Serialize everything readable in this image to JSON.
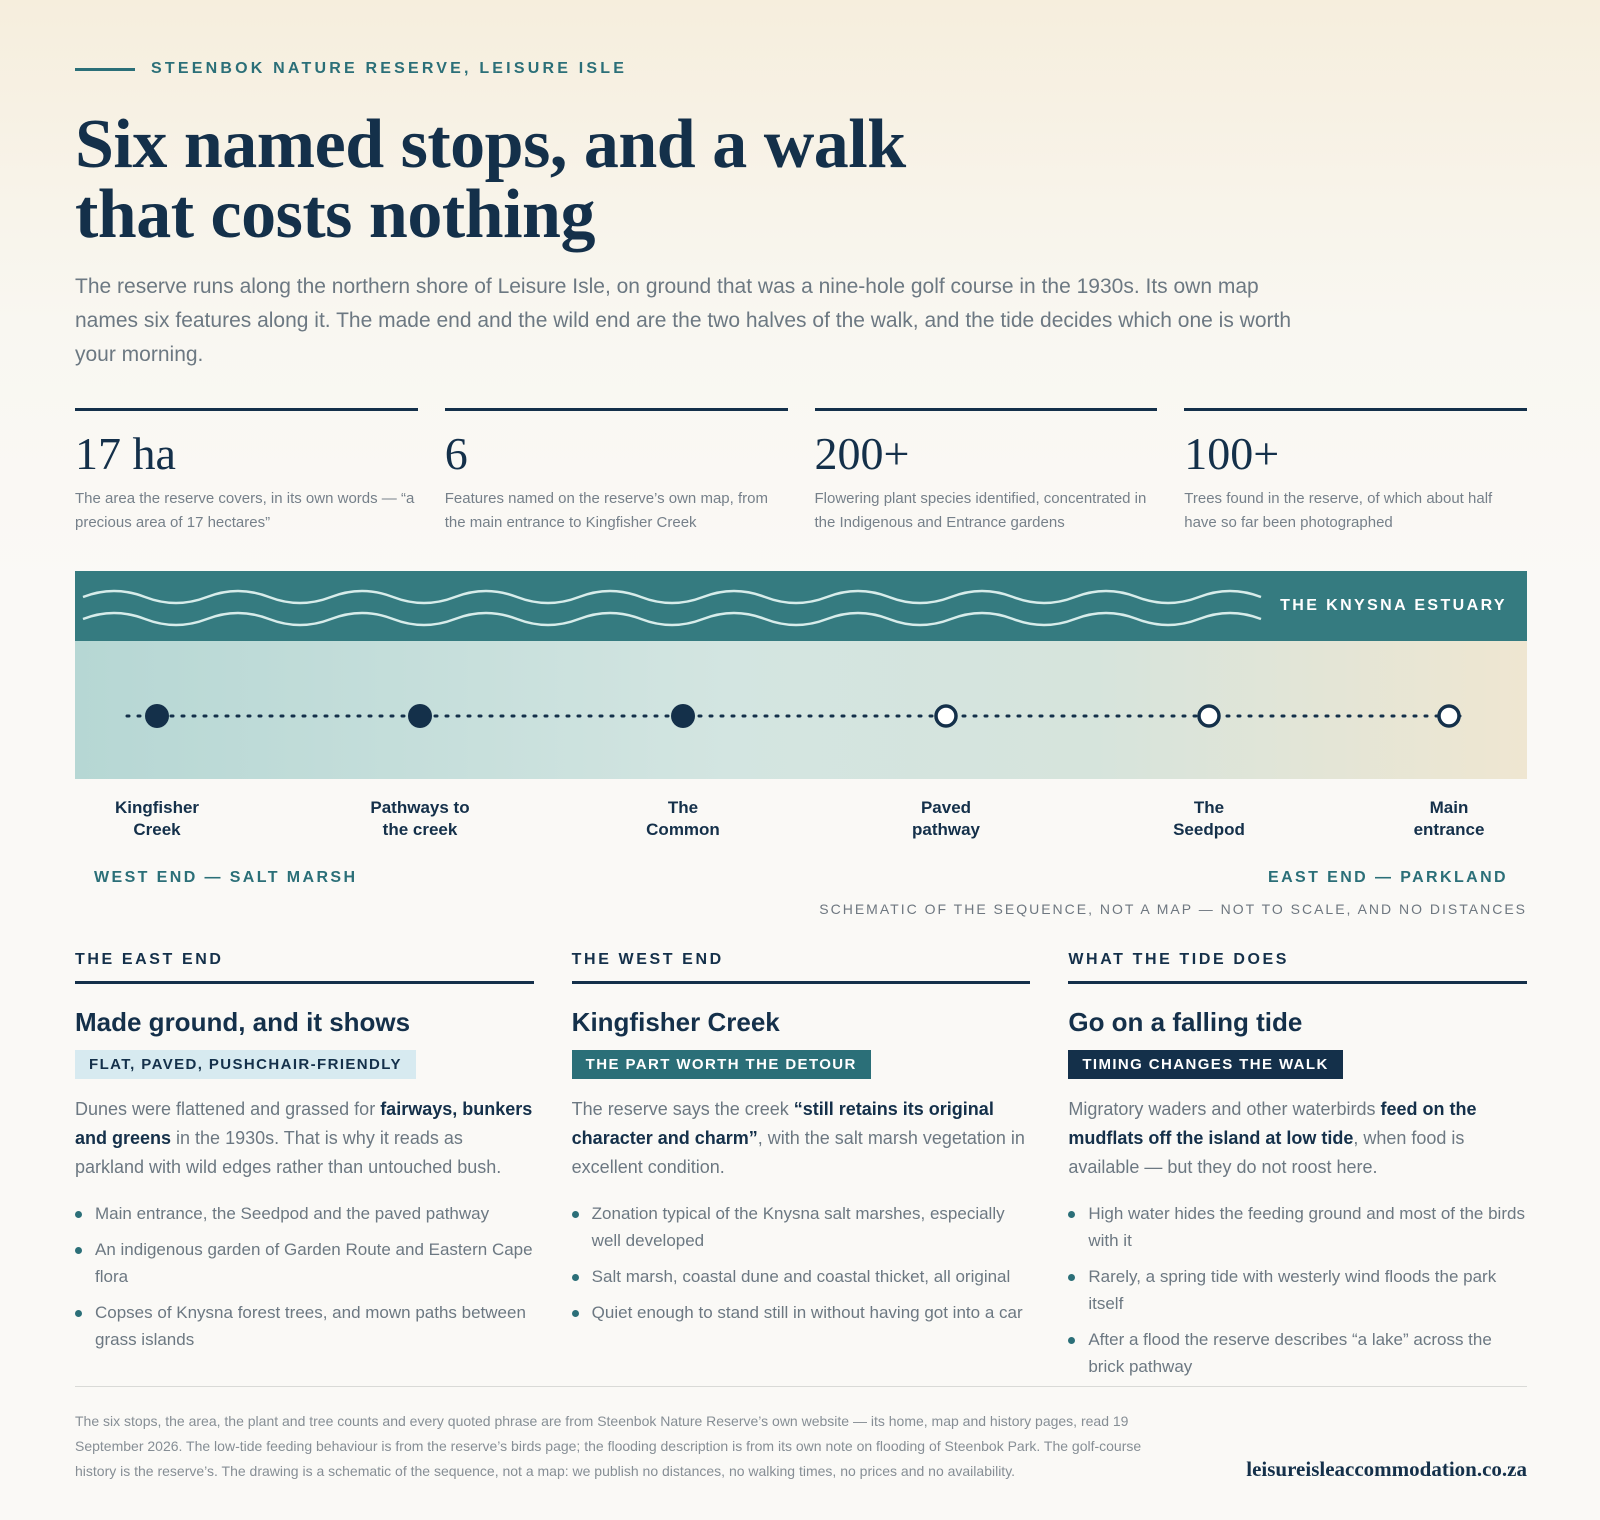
{
  "header": {
    "eyebrow": "STEENBOK NATURE RESERVE, LEISURE ISLE",
    "title_line1": "Six named stops, and a walk",
    "title_line2": "that costs nothing",
    "lede": "The reserve runs along the northern shore of Leisure Isle, on ground that was a nine-hole golf course in the 1930s. Its own map names six features along it. The made end and the wild end are the two halves of the walk, and the tide decides which one is worth your morning."
  },
  "stats": [
    {
      "value": "17 ha",
      "desc": "The area the reserve covers, in its own words — “a precious area of 17 hectares”"
    },
    {
      "value": "6",
      "desc": "Features named on the reserve’s own map, from the main entrance to Kingfisher Creek"
    },
    {
      "value": "200+",
      "desc": "Flowering plant species identified, concentrated in the Indigenous and Entrance gardens"
    },
    {
      "value": "100+",
      "desc": "Trees found in the reserve, of which about half have so far been photographed"
    }
  ],
  "diagram": {
    "estuary_label": "THE KNYSNA ESTUARY",
    "stops": [
      {
        "line1": "Kingfisher",
        "line2": "Creek",
        "marker": "filled"
      },
      {
        "line1": "Pathways to",
        "line2": "the creek",
        "marker": "filled"
      },
      {
        "line1": "The",
        "line2": "Common",
        "marker": "filled"
      },
      {
        "line1": "Paved",
        "line2": "pathway",
        "marker": "hollow"
      },
      {
        "line1": "The",
        "line2": "Seedpod",
        "marker": "hollow"
      },
      {
        "line1": "Main",
        "line2": "entrance",
        "marker": "hollow"
      }
    ],
    "west_label": "WEST END — SALT MARSH",
    "east_label": "EAST END — PARKLAND",
    "scale_note": "SCHEMATIC OF THE SEQUENCE, NOT A MAP — NOT TO SCALE, AND NO DISTANCES",
    "colors": {
      "water": "#357b80",
      "marker": "#14304a"
    }
  },
  "columns": [
    {
      "eyebrow": "THE EAST END",
      "title": "Made ground, and it shows",
      "badge": "FLAT, PAVED, PUSHCHAIR-FRIENDLY",
      "body_a": "Dunes were flattened and grassed for ",
      "body_b": "fairways, bunkers and greens",
      "body_c": " in the 1930s. That is why it reads as parkland with wild edges rather than untouched bush.",
      "bullets": [
        "Main entrance, the Seedpod and the paved pathway",
        "An indigenous garden of Garden Route and Eastern Cape flora",
        "Copses of Knysna forest trees, and mown paths between grass islands"
      ]
    },
    {
      "eyebrow": "THE WEST END",
      "title": "Kingfisher Creek",
      "badge": "THE PART WORTH THE DETOUR",
      "body_a": "The reserve says the creek ",
      "body_b": "“still retains its original character and charm”",
      "body_c": ", with the salt marsh vegetation in excellent condition.",
      "bullets": [
        "Zonation typical of the Knysna salt marshes, especially well developed",
        "Salt marsh, coastal dune and coastal thicket, all original",
        "Quiet enough to stand still in without having got into a car"
      ]
    },
    {
      "eyebrow": "WHAT THE TIDE DOES",
      "title": "Go on a falling tide",
      "badge": "TIMING CHANGES THE WALK",
      "body_a": "Migratory waders and other waterbirds ",
      "body_b": "feed on the mudflats off the island at low tide",
      "body_c": ", when food is available — but they do not roost here.",
      "bullets": [
        "High water hides the feeding ground and most of the birds with it",
        "Rarely, a spring tide with westerly wind floods the park itself",
        "After a flood the reserve describes “a lake” across the brick pathway"
      ]
    }
  ],
  "footer": {
    "note": "The six stops, the area, the plant and tree counts and every quoted phrase are from Steenbok Nature Reserve’s own website — its home, map and history pages, read 19 September 2026. The low-tide feeding behaviour is from the reserve’s birds page; the flooding description is from its own note on flooding of Steenbok Park. The golf-course history is the reserve’s. The drawing is a schematic of the sequence, not a map: we publish no distances, no walking times, no prices and no availability.",
    "site": "leisureisleaccommodation.co.za"
  }
}
